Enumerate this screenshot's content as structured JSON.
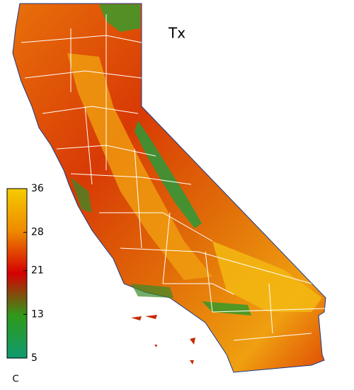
{
  "title": "Tx",
  "colorbar": {
    "label": "C",
    "lim": [
      5,
      36
    ],
    "ticks": [
      5,
      13,
      21,
      28,
      36
    ],
    "colors": [
      "#0f9a70",
      "#2f9a1a",
      "#d50000",
      "#ee8a00",
      "#f5cc00"
    ]
  }
}
